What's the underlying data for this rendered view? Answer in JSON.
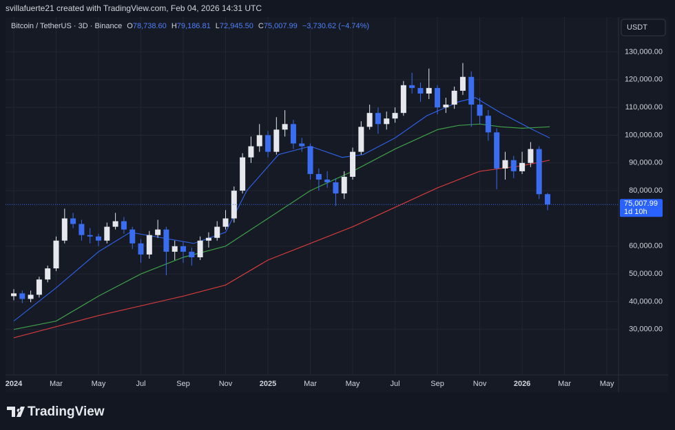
{
  "attribution": "svillafuerte21 created with TradingView.com, Feb 04, 2026 14:31 UTC",
  "branding": "TradingView",
  "chart_data": {
    "type": "candlestick",
    "title": "Bitcoin / TetherUS · 3D · Binance",
    "ohlc_header": [
      {
        "key": "O",
        "value": "78,738.60"
      },
      {
        "key": "H",
        "value": "79,186.81"
      },
      {
        "key": "L",
        "value": "72,945.50"
      },
      {
        "key": "C",
        "value": "75,007.99"
      }
    ],
    "change": "−3,730.62 (−4.74%)",
    "currency": "USDT",
    "up_color": "#e6e8ee",
    "down_color": "#3a6df0",
    "x": [
      0,
      0.4,
      0.8,
      1.2,
      1.6,
      2.0,
      2.4,
      2.8,
      3.2,
      3.6,
      4.0,
      4.4,
      4.8,
      5.2,
      5.6,
      6.0,
      6.4,
      6.8,
      7.2,
      7.6,
      8.0,
      8.4,
      8.8,
      9.2,
      9.6,
      10.0,
      10.4,
      10.8,
      11.2,
      11.6,
      12.0,
      12.4,
      12.8,
      13.2,
      13.6,
      14.0,
      14.4,
      14.8,
      15.2,
      15.6,
      16.0,
      16.4,
      16.8,
      17.2,
      17.6,
      18.0,
      18.4,
      18.8,
      19.2,
      19.6,
      20.0,
      20.4,
      20.8,
      21.2,
      21.6,
      22.0,
      22.4,
      22.8,
      23.2,
      23.6,
      24.0,
      24.4,
      24.8,
      25.2
    ],
    "open": [
      42000,
      43000,
      41000,
      42500,
      48000,
      52000,
      62000,
      70000,
      68000,
      64000,
      63500,
      62000,
      67000,
      69000,
      66000,
      61000,
      57000,
      64000,
      66000,
      58000,
      60000,
      58000,
      56000,
      62000,
      63000,
      67000,
      70000,
      80000,
      92000,
      96000,
      100000,
      94000,
      102000,
      104000,
      97000,
      96000,
      86000,
      84000,
      83000,
      79000,
      85000,
      94000,
      103000,
      108000,
      104000,
      106000,
      108000,
      118000,
      117000,
      115000,
      117000,
      110000,
      111000,
      116000,
      121000,
      111000,
      107000,
      101000,
      88000,
      91000,
      87000,
      90000,
      95000,
      78738.6
    ],
    "high": [
      44500,
      44000,
      44000,
      49000,
      53000,
      63500,
      73500,
      72000,
      69500,
      66500,
      64500,
      68500,
      72000,
      70500,
      67000,
      62500,
      65500,
      69500,
      67000,
      62000,
      61500,
      59500,
      63500,
      65000,
      69000,
      73000,
      81500,
      93500,
      99500,
      104000,
      101500,
      106500,
      109000,
      105500,
      99000,
      97000,
      88000,
      87000,
      84500,
      87000,
      95500,
      105000,
      111000,
      110000,
      108500,
      110000,
      119500,
      122500,
      119000,
      124000,
      118000,
      113500,
      117500,
      126000,
      123000,
      113500,
      109000,
      102500,
      94000,
      92500,
      94000,
      97500,
      96000,
      79186.81
    ],
    "low": [
      40500,
      39500,
      39800,
      41500,
      47000,
      51000,
      61000,
      66500,
      62000,
      61000,
      60000,
      61000,
      66000,
      64500,
      59000,
      54000,
      55500,
      63000,
      49500,
      55000,
      54000,
      53000,
      55000,
      59500,
      62000,
      66000,
      68500,
      79000,
      90000,
      94000,
      92000,
      93000,
      99500,
      95000,
      94000,
      84000,
      80000,
      81000,
      74500,
      77000,
      84000,
      93000,
      102000,
      100500,
      102000,
      104500,
      107000,
      115000,
      112000,
      113000,
      107500,
      108000,
      109500,
      114500,
      103000,
      104000,
      98000,
      80500,
      84000,
      84500,
      86000,
      88500,
      77000,
      72945.5
    ],
    "close": [
      43000,
      41000,
      42500,
      48000,
      52000,
      62000,
      70000,
      68000,
      64000,
      63500,
      62000,
      67000,
      69000,
      66000,
      61000,
      57000,
      64000,
      66000,
      58000,
      60000,
      58000,
      56000,
      62000,
      63000,
      67000,
      70000,
      80000,
      92000,
      96000,
      100000,
      94000,
      102000,
      104000,
      97000,
      96000,
      86000,
      84000,
      83000,
      79000,
      85000,
      94000,
      103000,
      108000,
      104000,
      106000,
      108000,
      118000,
      117000,
      115000,
      117000,
      110000,
      111000,
      116000,
      121000,
      111000,
      107000,
      101000,
      88000,
      91000,
      87000,
      90000,
      95000,
      78738.6,
      75007.99
    ],
    "moving_averages": [
      {
        "color": "#2f5fe0",
        "x": [
          0,
          2,
          4,
          5.5,
          7,
          8.5,
          10,
          11,
          12.5,
          14,
          15.5,
          16.5,
          18,
          19.5,
          21,
          21.8,
          23,
          24.5,
          25.3
        ],
        "values": [
          33000,
          45000,
          58000,
          65000,
          63000,
          61000,
          65000,
          80000,
          93000,
          96000,
          92000,
          93000,
          99000,
          107000,
          112000,
          113500,
          108000,
          102000,
          99000
        ]
      },
      {
        "color": "#3fa14a",
        "x": [
          0,
          2,
          4,
          6,
          8,
          10,
          12,
          14,
          16,
          18,
          20,
          21,
          22,
          23,
          24,
          25.3
        ],
        "values": [
          30000,
          33000,
          42000,
          50000,
          56000,
          60000,
          70000,
          80000,
          87000,
          95000,
          102000,
          103500,
          104000,
          103000,
          102500,
          103000
        ]
      },
      {
        "color": "#d43c3c",
        "x": [
          0,
          2,
          4,
          6,
          8,
          10,
          12,
          14,
          16,
          18,
          20,
          22,
          24,
          25.3
        ],
        "values": [
          27000,
          31000,
          35000,
          38500,
          42000,
          46000,
          55000,
          61000,
          67000,
          74000,
          81000,
          87000,
          89000,
          91000
        ]
      }
    ],
    "last_price": {
      "value": 75007.99,
      "label": "75,007.99",
      "countdown": "1d 10h"
    },
    "xlim": [
      -0.39,
      28.55
    ],
    "ylim": [
      13600,
      142500
    ],
    "xticks": [
      {
        "value": 0,
        "label": "2024"
      },
      {
        "value": 2,
        "label": "Mar"
      },
      {
        "value": 4,
        "label": "May"
      },
      {
        "value": 6,
        "label": "Jul"
      },
      {
        "value": 8,
        "label": "Sep"
      },
      {
        "value": 10,
        "label": "Nov"
      },
      {
        "value": 12,
        "label": "2025"
      },
      {
        "value": 14,
        "label": "Mar"
      },
      {
        "value": 16,
        "label": "May"
      },
      {
        "value": 18,
        "label": "Jul"
      },
      {
        "value": 20,
        "label": "Sep"
      },
      {
        "value": 22,
        "label": "Nov"
      },
      {
        "value": 24,
        "label": "2026"
      },
      {
        "value": 26,
        "label": "Mar"
      },
      {
        "value": 28,
        "label": "May"
      }
    ],
    "yticks": [
      {
        "value": 30000,
        "label": "30,000.00"
      },
      {
        "value": 40000,
        "label": "40,000.00"
      },
      {
        "value": 50000,
        "label": "50,000.00"
      },
      {
        "value": 60000,
        "label": "60,000.00"
      },
      {
        "value": 80000,
        "label": "80,000.00"
      },
      {
        "value": 90000,
        "label": "90,000.00"
      },
      {
        "value": 100000,
        "label": "100,000.00"
      },
      {
        "value": 110000,
        "label": "110,000.00"
      },
      {
        "value": 120000,
        "label": "120,000.00"
      },
      {
        "value": 130000,
        "label": "130,000.00"
      }
    ],
    "grid": true
  }
}
